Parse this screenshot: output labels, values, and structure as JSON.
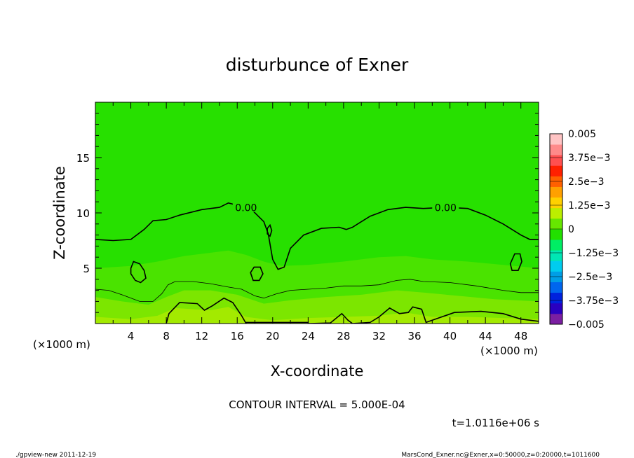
{
  "chart_data": {
    "type": "heatmap",
    "title": "disturbunce of Exner",
    "xlabel": "X-coordinate",
    "ylabel": "Z-coordinate",
    "x_units": "(×1000 m)",
    "x_units_right": "(×1000 m)",
    "xlim": [
      0,
      50
    ],
    "ylim": [
      0,
      20
    ],
    "xticks": [
      4,
      8,
      12,
      16,
      20,
      24,
      28,
      32,
      36,
      40,
      44,
      48
    ],
    "yticks": [
      5,
      10,
      15
    ],
    "contour_interval_text": "CONTOUR INTERVAL = 5.000E-04",
    "time_text": "t=1.0116e+06 s",
    "contour_labels": [
      {
        "text": "0.00",
        "x": 17.0,
        "z": 10.4
      },
      {
        "text": "0.00",
        "x": 39.5,
        "z": 10.4
      }
    ],
    "zero_contour_main": [
      [
        0,
        7.6
      ],
      [
        2,
        7.5
      ],
      [
        4,
        7.6
      ],
      [
        5.5,
        8.5
      ],
      [
        6.5,
        9.3
      ],
      [
        8,
        9.4
      ],
      [
        9.5,
        9.8
      ],
      [
        12,
        10.3
      ],
      [
        14,
        10.5
      ],
      [
        15,
        10.9
      ],
      [
        17.5,
        10.4
      ],
      [
        19,
        9.2
      ],
      [
        19.5,
        8.1
      ],
      [
        20,
        5.8
      ],
      [
        20.6,
        4.9
      ],
      [
        21.3,
        5.1
      ],
      [
        22,
        6.8
      ],
      [
        23.5,
        8.0
      ],
      [
        25.5,
        8.6
      ],
      [
        27.5,
        8.7
      ],
      [
        28.3,
        8.5
      ],
      [
        29,
        8.7
      ],
      [
        31,
        9.7
      ],
      [
        33,
        10.3
      ],
      [
        35,
        10.5
      ],
      [
        37,
        10.4
      ],
      [
        39.5,
        10.5
      ],
      [
        42,
        10.4
      ],
      [
        44,
        9.8
      ],
      [
        46,
        9.0
      ],
      [
        48,
        8.0
      ],
      [
        49,
        7.6
      ],
      [
        50,
        7.6
      ]
    ],
    "zero_contour_bottom": [
      [
        8,
        0
      ],
      [
        8.3,
        0.9
      ],
      [
        9.5,
        1.9
      ],
      [
        11.5,
        1.8
      ],
      [
        12.3,
        1.2
      ],
      [
        13.2,
        1.6
      ],
      [
        14.5,
        2.3
      ],
      [
        15.5,
        1.9
      ],
      [
        16.5,
        0.7
      ],
      [
        17,
        0
      ],
      [
        17,
        0.1
      ],
      [
        24,
        0.1
      ],
      [
        24,
        0
      ],
      [
        26.5,
        0.05
      ],
      [
        27.8,
        0.9
      ],
      [
        28.5,
        0.3
      ],
      [
        29,
        0
      ],
      [
        31,
        0.1
      ],
      [
        32,
        0.6
      ],
      [
        33.2,
        1.4
      ],
      [
        34.3,
        0.9
      ],
      [
        35.3,
        1.0
      ],
      [
        35.8,
        1.5
      ],
      [
        36.8,
        1.3
      ],
      [
        37.3,
        0.1
      ],
      [
        38,
        0.3
      ],
      [
        40.5,
        1.0
      ],
      [
        43.5,
        1.1
      ],
      [
        46,
        0.9
      ],
      [
        48,
        0.4
      ],
      [
        50,
        0.2
      ]
    ],
    "zero_contour_loops": [
      [
        [
          4.0,
          5.0
        ],
        [
          4.3,
          5.6
        ],
        [
          5.0,
          5.4
        ],
        [
          5.5,
          4.8
        ],
        [
          5.7,
          4.1
        ],
        [
          5.1,
          3.7
        ],
        [
          4.5,
          3.9
        ],
        [
          4.0,
          4.5
        ],
        [
          4.0,
          5.0
        ]
      ],
      [
        [
          17.5,
          4.6
        ],
        [
          17.9,
          5.1
        ],
        [
          18.6,
          5.1
        ],
        [
          18.9,
          4.5
        ],
        [
          18.5,
          3.9
        ],
        [
          17.8,
          3.9
        ],
        [
          17.5,
          4.6
        ]
      ],
      [
        [
          19.4,
          8.6
        ],
        [
          19.7,
          8.9
        ],
        [
          19.9,
          8.4
        ],
        [
          19.7,
          7.9
        ],
        [
          19.4,
          8.1
        ],
        [
          19.4,
          8.6
        ]
      ],
      [
        [
          46.8,
          5.4
        ],
        [
          47.3,
          6.3
        ],
        [
          47.9,
          6.3
        ],
        [
          48.1,
          5.6
        ],
        [
          47.7,
          4.8
        ],
        [
          47.0,
          4.8
        ],
        [
          46.8,
          5.4
        ]
      ]
    ],
    "thin_contour": [
      [
        0,
        3.1
      ],
      [
        1.5,
        3.0
      ],
      [
        3,
        2.6
      ],
      [
        5,
        2.0
      ],
      [
        6.5,
        2.0
      ],
      [
        7.5,
        2.7
      ],
      [
        8.2,
        3.5
      ],
      [
        9,
        3.8
      ],
      [
        11,
        3.8
      ],
      [
        13,
        3.6
      ],
      [
        15,
        3.3
      ],
      [
        16.5,
        3.1
      ],
      [
        18,
        2.5
      ],
      [
        19,
        2.3
      ],
      [
        20.5,
        2.7
      ],
      [
        22,
        3.0
      ],
      [
        24,
        3.1
      ],
      [
        26,
        3.2
      ],
      [
        28,
        3.4
      ],
      [
        30,
        3.4
      ],
      [
        32,
        3.5
      ],
      [
        34,
        3.9
      ],
      [
        35.5,
        4.0
      ],
      [
        37,
        3.8
      ],
      [
        40,
        3.7
      ],
      [
        43,
        3.4
      ],
      [
        46,
        3.0
      ],
      [
        48,
        2.8
      ],
      [
        50,
        2.8
      ]
    ],
    "colorbar": {
      "levels_low_to_high": [
        "#7b1fa2",
        "#2a00c0",
        "#0022dd",
        "#0066ee",
        "#009ee6",
        "#00ccee",
        "#00e6b4",
        "#00ee64",
        "#22e000",
        "#66e600",
        "#bbee00",
        "#ffd000",
        "#ffa000",
        "#ff6000",
        "#ff2000",
        "#ff5050",
        "#ff8a8a",
        "#ffc4c4"
      ],
      "tick_labels_top_to_bottom": [
        "0.005",
        "3.75e−3",
        "2.5e−3",
        "1.25e−3",
        "0",
        "−1.25e−3",
        "−2.5e−3",
        "−3.75e−3",
        "−0.005"
      ],
      "range": [
        -0.005,
        0.005
      ]
    },
    "field_colors": {
      "upper": "#27e000",
      "lower_1": "#4ae300",
      "lower_2": "#7ce600",
      "lower_3": "#a3ea00"
    }
  },
  "footer": {
    "left": "./gpview-new   2011-12-19",
    "right": "MarsCond_Exner.nc@Exner,x=0:50000,z=0:20000,t=1011600"
  }
}
